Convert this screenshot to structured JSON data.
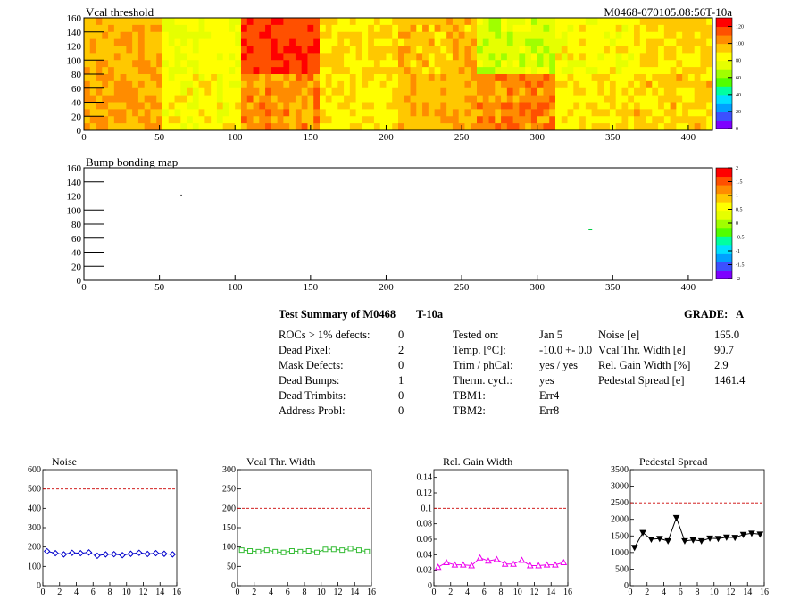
{
  "top_map": {
    "title": "Vcal threshold",
    "module_label": "M0468-070105.08:56T-10a",
    "x_ticks": [
      "0",
      "50",
      "100",
      "150",
      "200",
      "250",
      "300",
      "350",
      "400"
    ],
    "y_ticks": [
      "0",
      "20",
      "40",
      "60",
      "80",
      "100",
      "120",
      "140",
      "160"
    ],
    "palette_ticks": [
      "0",
      "20",
      "40",
      "60",
      "80",
      "100",
      "120"
    ]
  },
  "bump_map": {
    "title": "Bump bonding map",
    "x_ticks": [
      "0",
      "50",
      "100",
      "150",
      "200",
      "250",
      "300",
      "350",
      "400"
    ],
    "y_ticks": [
      "0",
      "20",
      "40",
      "60",
      "80",
      "100",
      "120",
      "140",
      "160"
    ],
    "palette_ticks": [
      "-2",
      "-1.5",
      "-1",
      "-0.5",
      "0",
      "0.5",
      "1",
      "1.5",
      "2"
    ]
  },
  "summary": {
    "title": "Test Summary of M0468",
    "temp_tag": "T-10a",
    "grade_label": "GRADE:",
    "grade": "A",
    "left_rows": [
      {
        "label": "ROCs > 1% defects:",
        "value": "0"
      },
      {
        "label": "Dead Pixel:",
        "value": "2"
      },
      {
        "label": "Mask Defects:",
        "value": "0"
      },
      {
        "label": "Dead Bumps:",
        "value": "1"
      },
      {
        "label": "Dead Trimbits:",
        "value": "0"
      },
      {
        "label": "Address Probl:",
        "value": "0"
      }
    ],
    "mid_rows": [
      {
        "label": "Tested on:",
        "value": "Jan 5"
      },
      {
        "label": "Temp. [°C]:",
        "value": "-10.0 +- 0.0"
      },
      {
        "label": "Trim / phCal:",
        "value": "yes / yes"
      },
      {
        "label": "Therm. cycl.:",
        "value": "yes"
      },
      {
        "label": "TBM1:",
        "value": "Err4"
      },
      {
        "label": "TBM2:",
        "value": "Err8"
      }
    ],
    "right_rows": [
      {
        "label": "Noise [e]",
        "value": "165.0"
      },
      {
        "label": "Vcal Thr. Width [e]",
        "value": "90.7"
      },
      {
        "label": "Rel. Gain Width [%]",
        "value": "2.9"
      },
      {
        "label": "Pedestal Spread [e]",
        "value": "1461.4"
      }
    ]
  },
  "chart_data": [
    {
      "type": "heatmap",
      "title": "Vcal threshold",
      "xlim": [
        0,
        416
      ],
      "ylim": [
        0,
        160
      ],
      "zlim": [
        0,
        130
      ],
      "palette": [
        "#7d00ff",
        "#3c50ff",
        "#00a0ff",
        "#00ffa0",
        "#50ff00",
        "#c8ff00",
        "#ffff00",
        "#ffc800",
        "#ff6400",
        "#ff0000"
      ],
      "roc_mean_values": [
        [
          98,
          82,
          118,
          92,
          96,
          75,
          84,
          92
        ],
        [
          100,
          85,
          104,
          88,
          98,
          106,
          88,
          93
        ]
      ]
    },
    {
      "type": "heatmap",
      "title": "Bump bonding map",
      "xlim": [
        0,
        416
      ],
      "ylim": [
        0,
        160
      ],
      "zlim": [
        -2,
        2
      ],
      "points": [
        {
          "x": 64,
          "y": 122,
          "z": 2
        },
        {
          "x": 334,
          "y": 73,
          "z": 0.2
        }
      ]
    },
    {
      "type": "line",
      "title": "Noise",
      "x": [
        0,
        1,
        2,
        3,
        4,
        5,
        6,
        7,
        8,
        9,
        10,
        11,
        12,
        13,
        14,
        15
      ],
      "series": [
        {
          "values": [
            178,
            168,
            162,
            170,
            168,
            172,
            155,
            162,
            163,
            158,
            165,
            170,
            164,
            168,
            165,
            162
          ]
        }
      ],
      "reference": 500,
      "xlim": [
        0,
        16
      ],
      "ylim": [
        0,
        600
      ],
      "x_ticks": [
        "0",
        "2",
        "4",
        "6",
        "8",
        "10",
        "12",
        "14",
        "16"
      ],
      "y_ticks": [
        "0",
        "100",
        "200",
        "300",
        "400",
        "500",
        "600"
      ],
      "color": "#0000cc",
      "marker": "diamond"
    },
    {
      "type": "line",
      "title": "Vcal Thr. Width",
      "x": [
        0,
        1,
        2,
        3,
        4,
        5,
        6,
        7,
        8,
        9,
        10,
        11,
        12,
        13,
        14,
        15
      ],
      "series": [
        {
          "values": [
            92,
            90,
            88,
            92,
            88,
            86,
            90,
            88,
            90,
            86,
            94,
            94,
            92,
            96,
            92,
            88
          ]
        }
      ],
      "reference": 200,
      "xlim": [
        0,
        16
      ],
      "ylim": [
        0,
        300
      ],
      "x_ticks": [
        "0",
        "2",
        "4",
        "6",
        "8",
        "10",
        "12",
        "14",
        "16"
      ],
      "y_ticks": [
        "0",
        "50",
        "100",
        "150",
        "200",
        "250",
        "300"
      ],
      "color": "#33bb33",
      "marker": "square"
    },
    {
      "type": "line",
      "title": "Rel. Gain Width",
      "x": [
        0,
        1,
        2,
        3,
        4,
        5,
        6,
        7,
        8,
        9,
        10,
        11,
        12,
        13,
        14,
        15
      ],
      "series": [
        {
          "values": [
            0.024,
            0.03,
            0.027,
            0.027,
            0.026,
            0.036,
            0.032,
            0.034,
            0.028,
            0.028,
            0.033,
            0.026,
            0.026,
            0.027,
            0.027,
            0.03
          ]
        }
      ],
      "reference": 0.1,
      "xlim": [
        0,
        16
      ],
      "ylim": [
        0,
        0.15
      ],
      "x_ticks": [
        "0",
        "2",
        "4",
        "6",
        "8",
        "10",
        "12",
        "14",
        "16"
      ],
      "y_ticks": [
        "0",
        "0.02",
        "0.04",
        "0.06",
        "0.08",
        "0.1",
        "0.12",
        "0.14"
      ],
      "y_tick_values": [
        0,
        0.02,
        0.04,
        0.06,
        0.08,
        0.1,
        0.12,
        0.14
      ],
      "color": "#ee00ee",
      "marker": "triangle"
    },
    {
      "type": "line",
      "title": "Pedestal Spread",
      "x": [
        0,
        1,
        2,
        3,
        4,
        5,
        6,
        7,
        8,
        9,
        10,
        11,
        12,
        13,
        14,
        15
      ],
      "series": [
        {
          "values": [
            1150,
            1600,
            1400,
            1420,
            1350,
            2050,
            1350,
            1380,
            1350,
            1430,
            1420,
            1460,
            1450,
            1540,
            1580,
            1550
          ]
        }
      ],
      "reference": 2500,
      "xlim": [
        0,
        16
      ],
      "ylim": [
        0,
        3500
      ],
      "x_ticks": [
        "0",
        "2",
        "4",
        "6",
        "8",
        "10",
        "12",
        "14",
        "16"
      ],
      "y_ticks": [
        "0",
        "500",
        "1000",
        "1500",
        "2000",
        "2500",
        "3000",
        "3500"
      ],
      "color": "#000000",
      "marker": "triangle-down"
    }
  ]
}
